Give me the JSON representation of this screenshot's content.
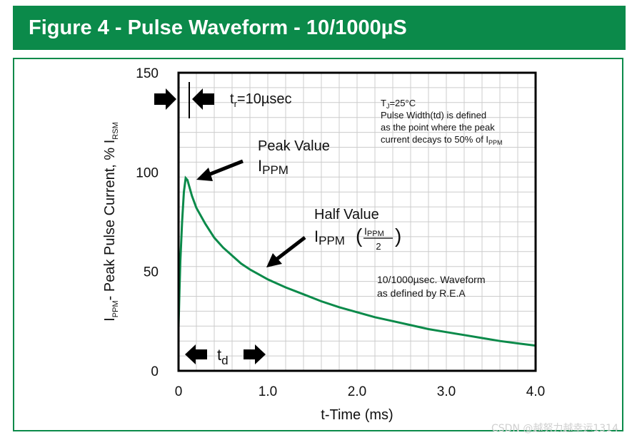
{
  "header": {
    "title": "Figure 4 - Pulse Waveform - 10/1000µS"
  },
  "chart_data": {
    "type": "line",
    "title": "Figure 4 - Pulse Waveform - 10/1000µS",
    "xlabel": "t-Time (ms)",
    "ylabel_main": "I",
    "ylabel_main_sub": "PPM",
    "ylabel_rest": "- Peak Pulse Current, % I",
    "ylabel_rest_sub": "RSM",
    "xlim": [
      0,
      4.0
    ],
    "ylim": [
      0,
      150
    ],
    "xticks": [
      0,
      1.0,
      2.0,
      3.0,
      4.0
    ],
    "xtick_labels": [
      "0",
      "1.0",
      "2.0",
      "3.0",
      "4.0"
    ],
    "yticks": [
      0,
      50,
      100,
      150
    ],
    "ytick_labels": [
      "0",
      "50",
      "100",
      "150"
    ],
    "grid": true,
    "series": [
      {
        "name": "10/1000µsec waveform",
        "color": "#0b8a4a",
        "x": [
          0,
          0.01,
          0.02,
          0.04,
          0.06,
          0.08,
          0.1,
          0.15,
          0.2,
          0.3,
          0.4,
          0.5,
          0.6,
          0.7,
          0.8,
          0.9,
          1.0,
          1.2,
          1.4,
          1.6,
          1.8,
          2.0,
          2.2,
          2.4,
          2.6,
          2.8,
          3.0,
          3.2,
          3.4,
          3.6,
          3.8,
          4.0
        ],
        "y": [
          22,
          40,
          55,
          75,
          90,
          97,
          96,
          88,
          82,
          74,
          67,
          62,
          58,
          54,
          51,
          48.5,
          46,
          42,
          38.5,
          35,
          32,
          29.5,
          27,
          25,
          23,
          21,
          19.5,
          18,
          16.5,
          15,
          13.8,
          12.7
        ]
      }
    ],
    "annotations": {
      "tr_label": "t",
      "tr_sub": "r",
      "tr_value": "=10µsec",
      "peak_line1": "Peak Value",
      "peak_line2": "I",
      "peak_line2_sub": "PPM",
      "half_line1": "Half Value",
      "half_line2": "I",
      "half_line2_sub": "PPM",
      "half_frac_num": "I",
      "half_frac_num_sub": "PPM",
      "half_frac_den": "2",
      "td_label": "t",
      "td_sub": "d",
      "note_tj": "T",
      "note_tj_sub": "J",
      "note_tj_value": "=25°C",
      "note_line2": "Pulse Width(td) is defined",
      "note_line3": "as the point where the peak",
      "note_line4": "current decays to 50% of I",
      "note_line4_sub": "PPM",
      "waveform_line1": "10/1000µsec. Waveform",
      "waveform_line2": "as defined by R.E.A"
    }
  },
  "watermark": "CSDN @越努力越幸运1314"
}
